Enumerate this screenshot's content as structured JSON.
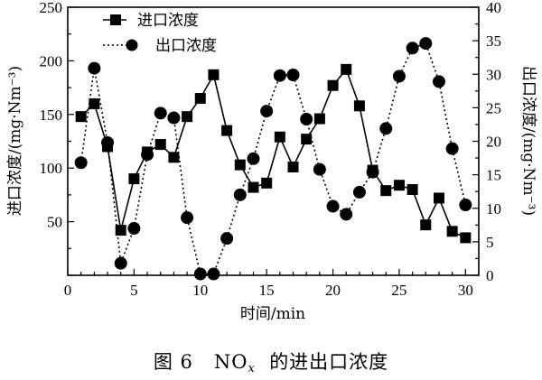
{
  "chart_data": {
    "type": "line",
    "xlabel": "时间/min",
    "ylabel": "进口浓度/(mg·Nm⁻³)",
    "y2label": "出口浓度/(mg·Nm⁻³)",
    "xlim": [
      0,
      31
    ],
    "ylim": [
      0,
      250
    ],
    "y2lim": [
      0,
      40
    ],
    "xticks": [
      "0",
      "5",
      "10",
      "15",
      "20",
      "25",
      "30"
    ],
    "yticks": [
      "50",
      "100",
      "150",
      "200",
      "250"
    ],
    "y2ticks": [
      "0",
      "5",
      "10",
      "15",
      "20",
      "25",
      "30",
      "35",
      "40"
    ],
    "grid": false,
    "legend_position": "top-left",
    "series": [
      {
        "name": "进口浓度",
        "axis": "left",
        "marker": "square",
        "line": "solid",
        "x": [
          1,
          2,
          3,
          4,
          5,
          6,
          7,
          8,
          9,
          10,
          11,
          12,
          13,
          14,
          15,
          16,
          17,
          18,
          19,
          20,
          21,
          22,
          23,
          24,
          25,
          26,
          27,
          28,
          29,
          30
        ],
        "values": [
          148,
          160,
          120,
          42,
          90,
          115,
          122,
          110,
          148,
          165,
          187,
          135,
          103,
          82,
          86,
          129,
          101,
          127,
          146,
          177,
          192,
          158,
          98,
          79,
          84,
          80,
          47,
          72,
          41,
          35
        ]
      },
      {
        "name": "出口浓度",
        "axis": "right",
        "marker": "circle",
        "line": "dotted",
        "x": [
          1,
          2,
          3,
          4,
          5,
          6,
          7,
          8,
          9,
          10,
          11,
          12,
          13,
          14,
          15,
          16,
          17,
          18,
          19,
          20,
          21,
          22,
          23,
          24,
          25,
          26,
          27,
          28,
          29,
          30
        ],
        "values": [
          16.8,
          30.9,
          19.8,
          1.8,
          7.0,
          18.0,
          24.2,
          23.5,
          8.6,
          0.2,
          0.2,
          5.5,
          12.0,
          17.4,
          24.5,
          29.8,
          29.9,
          23.3,
          15.8,
          10.3,
          9.1,
          12.4,
          15.4,
          21.9,
          29.7,
          33.9,
          34.6,
          28.9,
          18.9,
          10.5
        ]
      }
    ]
  },
  "caption": {
    "prefix": "图 6",
    "formula_main": "NO",
    "formula_sub": "x",
    "suffix": "的进出口浓度"
  }
}
